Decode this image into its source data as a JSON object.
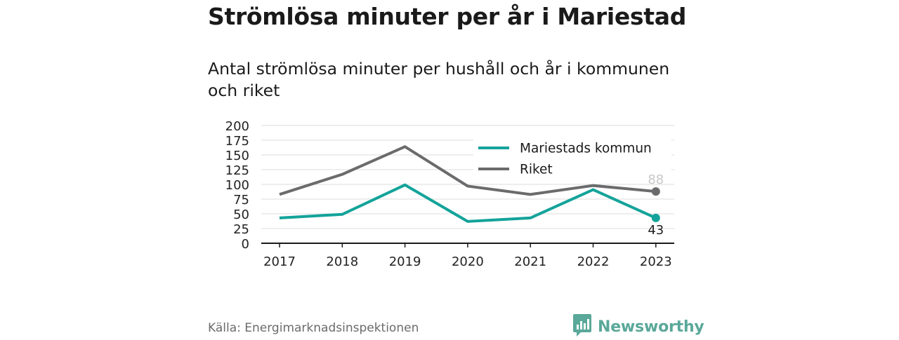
{
  "header": {
    "title": "Strömlösa minuter per år i Mariestad",
    "subtitle": "Antal strömlösa minuter per hushåll och år i kommunen och riket"
  },
  "chart_data": {
    "type": "line",
    "x": [
      "2017",
      "2018",
      "2019",
      "2020",
      "2021",
      "2022",
      "2023"
    ],
    "series": [
      {
        "name": "Mariestads kommun",
        "color": "#13a39a",
        "values": [
          43,
          49,
          99,
          37,
          43,
          91,
          43
        ],
        "end_label": "43"
      },
      {
        "name": "Riket",
        "color": "#6b6b6d",
        "values": [
          83,
          117,
          164,
          97,
          83,
          98,
          88
        ],
        "end_label": "88"
      }
    ],
    "ylim": [
      0,
      200
    ],
    "yticks": [
      "0",
      "25",
      "50",
      "75",
      "100",
      "125",
      "150",
      "175",
      "200"
    ],
    "xlabel": "",
    "ylabel": "",
    "grid": true,
    "legend_position": "top-right"
  },
  "footer": {
    "source": "Källa: Energimarknadsinspektionen",
    "brand": "Newsworthy",
    "brand_icon": "newsworthy-logo-icon",
    "brand_color": "#5aa89a"
  }
}
